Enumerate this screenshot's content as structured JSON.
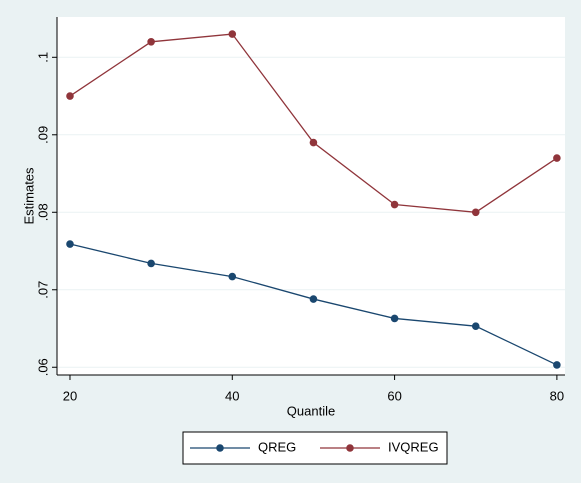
{
  "chart_data": {
    "type": "line",
    "x": [
      20,
      30,
      40,
      50,
      60,
      70,
      80
    ],
    "series": [
      {
        "name": "QREG",
        "color": "#1a476f",
        "values": [
          0.0759,
          0.0734,
          0.0717,
          0.0688,
          0.0663,
          0.0653,
          0.0603
        ]
      },
      {
        "name": "IVQREG",
        "color": "#90353b",
        "values": [
          0.095,
          0.102,
          0.103,
          0.089,
          0.081,
          0.08,
          0.087
        ]
      }
    ],
    "x_label": "Quantile",
    "y_label": "Estimates",
    "xlim": [
      18.4,
      81
    ],
    "ylim": [
      0.059,
      0.1052
    ],
    "xticks": [
      20,
      40,
      60,
      80
    ],
    "yticks": [
      {
        "value": 0.06,
        "label": ".06"
      },
      {
        "value": 0.07,
        "label": ".07"
      },
      {
        "value": 0.08,
        "label": ".08"
      },
      {
        "value": 0.09,
        "label": ".09"
      },
      {
        "value": 0.1,
        "label": ".1"
      }
    ],
    "grid": true,
    "legend": "bottom"
  }
}
